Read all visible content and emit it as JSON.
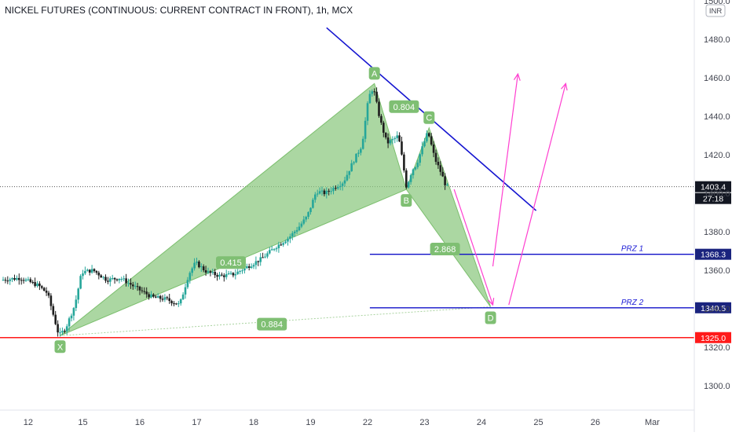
{
  "header": {
    "title": "NICKEL FUTURES (CONTINUOUS: CURRENT CONTRACT IN FRONT), 1h, MCX"
  },
  "chart_data": {
    "type": "candlestick",
    "title": "NICKEL FUTURES (CONTINUOUS: CURRENT CONTRACT IN FRONT), 1h, MCX",
    "currency": "INR",
    "ylim": [
      1289,
      1500
    ],
    "yticks": [
      1300,
      1320,
      1340,
      1360,
      1380,
      1400,
      1420,
      1440,
      1460,
      1480,
      1500
    ],
    "ytick_labels": [
      "1300.0",
      "1320.0",
      "1340.0",
      "1360.0",
      "1380.0",
      "1400.0",
      "1420.0",
      "1440.0",
      "1460.0",
      "1480.0",
      "1500.0"
    ],
    "xlim": [
      0,
      160
    ],
    "xticks": [
      {
        "label": "12",
        "t": 5.5
      },
      {
        "label": "15",
        "t": 17.5
      },
      {
        "label": "16",
        "t": 30
      },
      {
        "label": "17",
        "t": 42.5
      },
      {
        "label": "18",
        "t": 55
      },
      {
        "label": "19",
        "t": 67.5
      },
      {
        "label": "22",
        "t": 80
      },
      {
        "label": "23",
        "t": 92.5
      },
      {
        "label": "24",
        "t": 105
      },
      {
        "label": "25",
        "t": 117.5
      },
      {
        "label": "26",
        "t": 130
      },
      {
        "label": "Mar",
        "t": 142.5
      }
    ],
    "anchors": [
      {
        "t": 0,
        "p": 1355
      },
      {
        "t": 4,
        "p": 1356
      },
      {
        "t": 8,
        "p": 1352
      },
      {
        "t": 10,
        "p": 1348
      },
      {
        "t": 12.5,
        "p": 1326
      },
      {
        "t": 14,
        "p": 1330
      },
      {
        "t": 16,
        "p": 1342
      },
      {
        "t": 17.5,
        "p": 1359
      },
      {
        "t": 20,
        "p": 1360
      },
      {
        "t": 23,
        "p": 1355
      },
      {
        "t": 26,
        "p": 1356
      },
      {
        "t": 30,
        "p": 1350
      },
      {
        "t": 33,
        "p": 1346
      },
      {
        "t": 36,
        "p": 1345
      },
      {
        "t": 39,
        "p": 1342
      },
      {
        "t": 41,
        "p": 1358
      },
      {
        "t": 42.5,
        "p": 1364
      },
      {
        "t": 45,
        "p": 1359
      },
      {
        "t": 48,
        "p": 1357
      },
      {
        "t": 51,
        "p": 1358
      },
      {
        "t": 54,
        "p": 1362
      },
      {
        "t": 57,
        "p": 1366
      },
      {
        "t": 60,
        "p": 1372
      },
      {
        "t": 63,
        "p": 1377
      },
      {
        "t": 65,
        "p": 1382
      },
      {
        "t": 67,
        "p": 1388
      },
      {
        "t": 69,
        "p": 1401
      },
      {
        "t": 71,
        "p": 1400
      },
      {
        "t": 73,
        "p": 1403
      },
      {
        "t": 75,
        "p": 1406
      },
      {
        "t": 77,
        "p": 1416
      },
      {
        "t": 79,
        "p": 1425
      },
      {
        "t": 80.5,
        "p": 1450
      },
      {
        "t": 81.5,
        "p": 1455
      },
      {
        "t": 83,
        "p": 1438
      },
      {
        "t": 84.5,
        "p": 1426
      },
      {
        "t": 86,
        "p": 1428
      },
      {
        "t": 87,
        "p": 1430
      },
      {
        "t": 88,
        "p": 1416
      },
      {
        "t": 88.8,
        "p": 1403
      },
      {
        "t": 90,
        "p": 1412
      },
      {
        "t": 91,
        "p": 1415
      },
      {
        "t": 92,
        "p": 1422
      },
      {
        "t": 93.5,
        "p": 1432
      },
      {
        "t": 95,
        "p": 1418
      },
      {
        "t": 96.5,
        "p": 1410
      },
      {
        "t": 97.5,
        "p": 1403.4
      }
    ],
    "harmonic_pattern": {
      "points": [
        {
          "label": "X",
          "t": 12.5,
          "p": 1326
        },
        {
          "label": "A",
          "t": 81.5,
          "p": 1457
        },
        {
          "label": "B",
          "t": 88.5,
          "p": 1402
        },
        {
          "label": "C",
          "t": 93.5,
          "p": 1434
        },
        {
          "label": "D",
          "t": 107,
          "p": 1341
        }
      ],
      "ratios": [
        {
          "label": "0.415",
          "t": 50,
          "p": 1364
        },
        {
          "label": "0.804",
          "t": 88,
          "p": 1445
        },
        {
          "label": "2.868",
          "t": 97,
          "p": 1371
        },
        {
          "label": "0.884",
          "t": 59,
          "p": 1332
        }
      ]
    },
    "lines": [
      {
        "name": "PRZ 1",
        "price": 1368.3,
        "label": "PRZ 1",
        "tag": "1368.3"
      },
      {
        "name": "PRZ 2",
        "price": 1340.5,
        "label": "PRZ 2",
        "tag": "1340.5"
      },
      {
        "name": "support",
        "price": 1325.0,
        "tag": "1325.0"
      }
    ],
    "trendline": {
      "t1": 71,
      "p1": 1486,
      "t2": 117,
      "p2": 1391
    },
    "projection_arrows": [
      {
        "from_t": 99,
        "from_p": 1402,
        "to_t": 107.5,
        "to_p": 1342
      },
      {
        "from_t": 107.5,
        "from_p": 1362,
        "to_t": 113,
        "to_p": 1462
      },
      {
        "from_t": 111,
        "from_p": 1342,
        "to_t": 123.5,
        "to_p": 1457
      }
    ],
    "last_price": {
      "value": "1403.4",
      "countdown": "27:18"
    },
    "colors": {
      "up": "#26a69a",
      "down": "#1e1e1e",
      "pattern": "#8bc77e",
      "trend": "#1414d0",
      "prz": "#1010c8",
      "support": "#ff1a1a",
      "arrow": "#ff3fd0",
      "tag": "#1a237e"
    }
  }
}
